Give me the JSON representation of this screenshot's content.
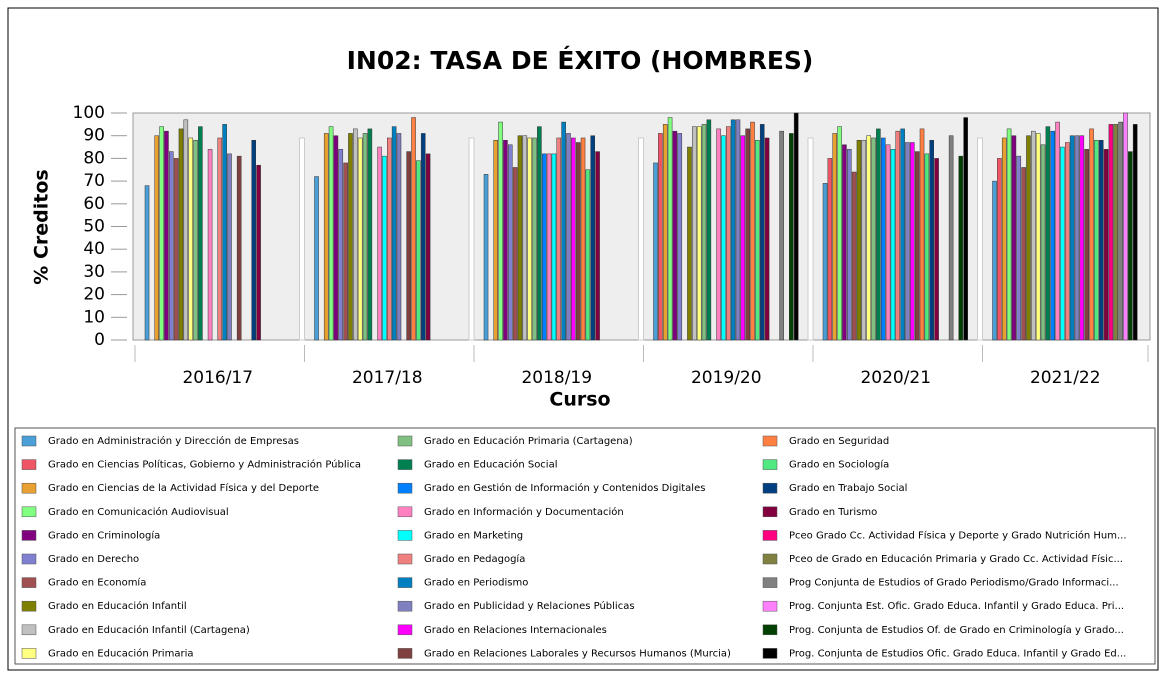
{
  "chart_data": {
    "type": "bar",
    "title": "IN02: TASA DE ÉXITO (HOMBRES)",
    "x_label": "Curso",
    "y_label": "% Creditos",
    "categories": [
      "2016/17",
      "2017/18",
      "2018/19",
      "2019/20",
      "2020/21",
      "2021/22"
    ],
    "ylim": [
      0,
      100
    ],
    "yticks": [
      0,
      10,
      20,
      30,
      40,
      50,
      60,
      70,
      80,
      90,
      100
    ],
    "grid": false,
    "series": [
      {
        "name": "Grado en Administración y Dirección de Empresas",
        "color": "#4a9fd8",
        "values": [
          68,
          72,
          73,
          78,
          69,
          70
        ]
      },
      {
        "name": "Grado en Ciencias Políticas, Gobierno y Administración Pública",
        "color": "#f05565",
        "values": [
          null,
          null,
          null,
          91,
          80,
          80
        ]
      },
      {
        "name": "Grado en Ciencias de la Actividad Física y del Deporte",
        "color": "#e8a030",
        "values": [
          90,
          91,
          88,
          95,
          91,
          89
        ]
      },
      {
        "name": "Grado en Comunicación Audiovisual",
        "color": "#80ff80",
        "values": [
          94,
          94,
          96,
          98,
          94,
          93
        ]
      },
      {
        "name": "Grado en Criminología",
        "color": "#800080",
        "values": [
          92,
          90,
          88,
          92,
          86,
          90
        ]
      },
      {
        "name": "Grado en Derecho",
        "color": "#8080d0",
        "values": [
          83,
          84,
          86,
          91,
          84,
          81
        ]
      },
      {
        "name": "Grado en Economía",
        "color": "#a05050",
        "values": [
          80,
          78,
          76,
          null,
          74,
          76
        ]
      },
      {
        "name": "Grado en Educación Infantil",
        "color": "#808000",
        "values": [
          93,
          91,
          90,
          85,
          88,
          90
        ]
      },
      {
        "name": "Grado en Educación Infantil (Cartagena)",
        "color": "#c0c0c0",
        "values": [
          97,
          93,
          90,
          94,
          88,
          92
        ]
      },
      {
        "name": "Grado en Educación Primaria",
        "color": "#ffff80",
        "values": [
          89,
          89,
          89,
          94,
          90,
          91
        ]
      },
      {
        "name": "Grado en Educación Primaria (Cartagena)",
        "color": "#80c080",
        "values": [
          88,
          91,
          89,
          95,
          89,
          86
        ]
      },
      {
        "name": "Grado en Educación Social",
        "color": "#008050",
        "values": [
          94,
          93,
          94,
          97,
          93,
          94
        ]
      },
      {
        "name": "Grado en Gestión de Información y Contenidos Digitales",
        "color": "#0080ff",
        "values": [
          null,
          null,
          82,
          null,
          89,
          92
        ]
      },
      {
        "name": "Grado en Información y Documentación",
        "color": "#ff80c0",
        "values": [
          84,
          85,
          82,
          93,
          86,
          96
        ]
      },
      {
        "name": "Grado en Marketing",
        "color": "#00ffff",
        "values": [
          null,
          81,
          82,
          90,
          84,
          85
        ]
      },
      {
        "name": "Grado en Pedagogía",
        "color": "#f08080",
        "values": [
          89,
          89,
          89,
          94,
          92,
          87
        ]
      },
      {
        "name": "Grado en Periodismo",
        "color": "#0080c0",
        "values": [
          95,
          94,
          96,
          97,
          93,
          90
        ]
      },
      {
        "name": "Grado en Publicidad y Relaciones Públicas",
        "color": "#8080c0",
        "values": [
          82,
          91,
          91,
          97,
          87,
          90
        ]
      },
      {
        "name": "Grado en Relaciones Internacionales",
        "color": "#ff00ff",
        "values": [
          null,
          null,
          89,
          90,
          87,
          90
        ]
      },
      {
        "name": "Grado en Relaciones Laborales y Recursos Humanos (Murcia)",
        "color": "#804040",
        "values": [
          81,
          83,
          87,
          93,
          83,
          84
        ]
      },
      {
        "name": "Grado en Seguridad",
        "color": "#ff8040",
        "values": [
          null,
          98,
          89,
          96,
          93,
          93
        ]
      },
      {
        "name": "Grado en Sociología",
        "color": "#50e880",
        "values": [
          null,
          79,
          75,
          88,
          82,
          88
        ]
      },
      {
        "name": "Grado en Trabajo Social",
        "color": "#004080",
        "values": [
          88,
          91,
          90,
          95,
          88,
          88
        ]
      },
      {
        "name": "Grado en Turismo",
        "color": "#800040",
        "values": [
          77,
          82,
          83,
          89,
          80,
          84
        ]
      },
      {
        "name": "Pceo Grado Cc. Actividad Física y Deporte y Grado Nutrición Hum...",
        "color": "#ff0080",
        "values": [
          null,
          null,
          null,
          null,
          null,
          95
        ]
      },
      {
        "name": "Pceo de Grado en Educación Primaria y Grado  Cc. Actividad Físic...",
        "color": "#808040",
        "values": [
          null,
          null,
          null,
          null,
          null,
          95
        ]
      },
      {
        "name": "Prog Conjunta de Estudios of Grado Periodismo/Grado Informaci...",
        "color": "#808080",
        "values": [
          null,
          null,
          null,
          92,
          90,
          96
        ]
      },
      {
        "name": "Prog. Conjunta  Est. Ofic. Grado Educa. Infantil y Grado Educa. Pri...",
        "color": "#ff80ff",
        "values": [
          null,
          null,
          null,
          null,
          null,
          100
        ]
      },
      {
        "name": "Prog. Conjunta de Estudios Of. de Grado en Criminología y Grado...",
        "color": "#004000",
        "values": [
          null,
          null,
          null,
          91,
          81,
          83
        ]
      },
      {
        "name": "Prog. Conjunta de Estudios Ofic. Grado Educa. Infantil y Grado Ed...",
        "color": "#000000",
        "values": [
          null,
          null,
          null,
          100,
          98,
          95
        ]
      }
    ]
  }
}
